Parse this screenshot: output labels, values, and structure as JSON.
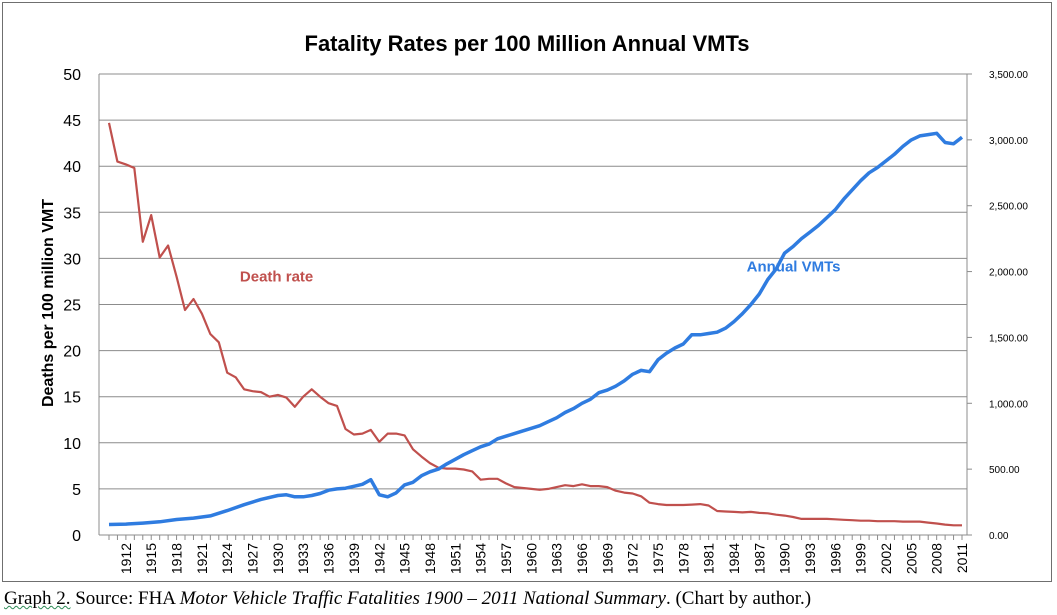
{
  "chart_data": {
    "type": "line",
    "title": "Fatality Rates per 100 Million Annual VMTs",
    "ylabel": "Deaths  per 100 million VMT",
    "ylim": [
      0,
      50
    ],
    "y_ticks": [
      "0",
      "5",
      "10",
      "15",
      "20",
      "25",
      "30",
      "35",
      "40",
      "45",
      "50"
    ],
    "y2lim": [
      0,
      3500
    ],
    "y2_ticks": [
      "0.00",
      "500.00",
      "1,000.00",
      "1,500.00",
      "2,000.00",
      "2,500.00",
      "3,000.00",
      "3,500.00"
    ],
    "grid": "horizontal",
    "x_start": 1910,
    "x_end": 2011,
    "x_tick_labels": [
      "1912",
      "1915",
      "1918",
      "1921",
      "1924",
      "1927",
      "1930",
      "1933",
      "1936",
      "1939",
      "1942",
      "1945",
      "1948",
      "1951",
      "1954",
      "1957",
      "1960",
      "1963",
      "1966",
      "1969",
      "1972",
      "1975",
      "1978",
      "1981",
      "1984",
      "1987",
      "1990",
      "1993",
      "1996",
      "1999",
      "2002",
      "2005",
      "2008",
      "2011"
    ],
    "colors": {
      "death_rate": "#c0504d",
      "annual_vmts": "#2f7ce0"
    },
    "series": [
      {
        "name": "Death rate",
        "axis": "left",
        "x": [
          1910,
          1911,
          1912,
          1913,
          1914,
          1915,
          1916,
          1917,
          1918,
          1919,
          1920,
          1921,
          1922,
          1923,
          1924,
          1925,
          1926,
          1927,
          1928,
          1929,
          1930,
          1931,
          1932,
          1933,
          1934,
          1935,
          1936,
          1937,
          1938,
          1939,
          1940,
          1941,
          1942,
          1943,
          1944,
          1945,
          1946,
          1947,
          1948,
          1949,
          1950,
          1951,
          1952,
          1953,
          1954,
          1955,
          1956,
          1957,
          1958,
          1959,
          1960,
          1961,
          1962,
          1963,
          1964,
          1965,
          1966,
          1967,
          1968,
          1969,
          1970,
          1971,
          1972,
          1973,
          1974,
          1975,
          1976,
          1977,
          1978,
          1979,
          1980,
          1981,
          1982,
          1983,
          1984,
          1985,
          1986,
          1987,
          1988,
          1989,
          1990,
          1991,
          1992,
          1993,
          1994,
          1995,
          1996,
          1997,
          1998,
          1999,
          2000,
          2001,
          2002,
          2003,
          2004,
          2005,
          2006,
          2007,
          2008,
          2009,
          2010,
          2011
        ],
        "values": [
          44.7,
          40.5,
          40.2,
          39.8,
          31.8,
          34.7,
          30.1,
          31.4,
          28.0,
          24.4,
          25.6,
          24.0,
          21.8,
          20.9,
          17.6,
          17.1,
          15.8,
          15.6,
          15.5,
          15.0,
          15.2,
          14.9,
          13.9,
          15.0,
          15.8,
          15.0,
          14.3,
          14.0,
          11.5,
          10.9,
          11.0,
          11.4,
          10.1,
          11.0,
          11.0,
          10.8,
          9.3,
          8.5,
          7.8,
          7.3,
          7.2,
          7.2,
          7.1,
          6.9,
          6.0,
          6.1,
          6.1,
          5.6,
          5.2,
          5.1,
          5.0,
          4.9,
          5.0,
          5.2,
          5.4,
          5.3,
          5.5,
          5.3,
          5.3,
          5.2,
          4.8,
          4.6,
          4.5,
          4.2,
          3.5,
          3.35,
          3.25,
          3.25,
          3.25,
          3.3,
          3.35,
          3.2,
          2.6,
          2.55,
          2.5,
          2.45,
          2.5,
          2.4,
          2.35,
          2.2,
          2.1,
          1.95,
          1.75,
          1.75,
          1.75,
          1.75,
          1.7,
          1.65,
          1.6,
          1.55,
          1.55,
          1.5,
          1.5,
          1.5,
          1.45,
          1.45,
          1.45,
          1.35,
          1.25,
          1.13,
          1.05,
          1.05
        ]
      },
      {
        "name": "Annual VMTs",
        "axis": "right",
        "x": [
          1910,
          1912,
          1914,
          1916,
          1918,
          1920,
          1922,
          1924,
          1926,
          1928,
          1930,
          1931,
          1932,
          1933,
          1934,
          1935,
          1936,
          1937,
          1938,
          1939,
          1940,
          1941,
          1942,
          1943,
          1944,
          1945,
          1946,
          1947,
          1948,
          1949,
          1950,
          1951,
          1952,
          1953,
          1954,
          1955,
          1956,
          1957,
          1958,
          1959,
          1960,
          1961,
          1962,
          1963,
          1964,
          1965,
          1966,
          1967,
          1968,
          1969,
          1970,
          1971,
          1972,
          1973,
          1974,
          1975,
          1976,
          1977,
          1978,
          1979,
          1980,
          1981,
          1982,
          1983,
          1984,
          1985,
          1986,
          1987,
          1988,
          1989,
          1990,
          1991,
          1992,
          1993,
          1994,
          1995,
          1996,
          1997,
          1998,
          1999,
          2000,
          2001,
          2002,
          2003,
          2004,
          2005,
          2006,
          2007,
          2008,
          2009,
          2010,
          2011
        ],
        "values": [
          80,
          83,
          90,
          100,
          118,
          128,
          145,
          185,
          230,
          270,
          300,
          305,
          290,
          290,
          300,
          315,
          340,
          350,
          355,
          370,
          385,
          420,
          305,
          290,
          320,
          380,
          400,
          450,
          480,
          500,
          540,
          575,
          610,
          640,
          670,
          690,
          730,
          750,
          770,
          790,
          810,
          830,
          860,
          890,
          930,
          960,
          1000,
          1030,
          1080,
          1100,
          1130,
          1170,
          1220,
          1250,
          1240,
          1330,
          1380,
          1420,
          1450,
          1520,
          1520,
          1530,
          1540,
          1570,
          1620,
          1680,
          1750,
          1830,
          1940,
          2020,
          2140,
          2190,
          2250,
          2300,
          2350,
          2410,
          2470,
          2550,
          2620,
          2690,
          2750,
          2790,
          2840,
          2890,
          2950,
          3000,
          3030,
          3040,
          3050,
          2980,
          2970,
          3020
        ]
      }
    ],
    "annotations": [
      {
        "text": "Death rate",
        "series": "Death rate",
        "at_x": 1925.5,
        "at_y": 27.5
      },
      {
        "text": "Annual VMTs",
        "series": "Annual VMTs",
        "at_x": 1985.5,
        "at_y": 2000
      }
    ]
  },
  "caption": {
    "prefix": "Graph 2.",
    "source": " Source: FHA ",
    "italic": "Motor Vehicle Traffic Fatalities 1900 – 2011 National Summary",
    "suffix": ". (Chart by author.)"
  }
}
